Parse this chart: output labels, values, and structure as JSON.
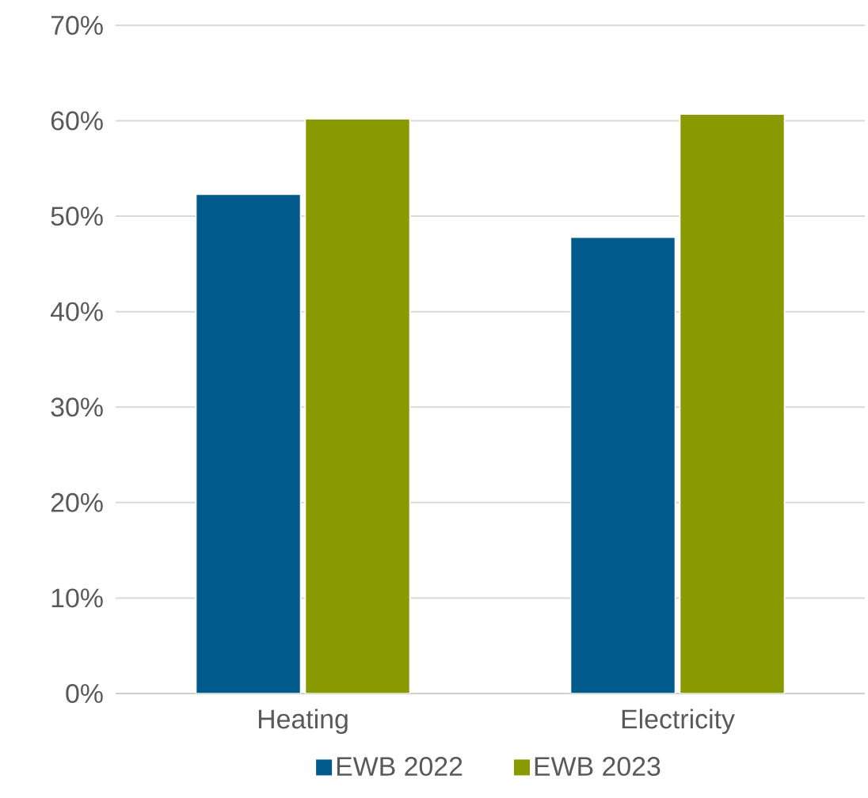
{
  "chart_data": {
    "type": "bar",
    "categories": [
      "Heating",
      "Electricity"
    ],
    "series": [
      {
        "name": "EWB 2022",
        "color": "#005a8c",
        "values": [
          52.3,
          47.8
        ]
      },
      {
        "name": "EWB 2023",
        "color": "#889a00",
        "values": [
          60.2,
          60.7
        ]
      }
    ],
    "ylim": [
      0,
      70
    ],
    "yticks": [
      {
        "value": 0,
        "label": "0%"
      },
      {
        "value": 10,
        "label": "10%"
      },
      {
        "value": 20,
        "label": "20%"
      },
      {
        "value": 30,
        "label": "30%"
      },
      {
        "value": 40,
        "label": "40%"
      },
      {
        "value": 50,
        "label": "50%"
      },
      {
        "value": 60,
        "label": "60%"
      },
      {
        "value": 70,
        "label": "70%"
      }
    ],
    "grid": "y",
    "legend": "bottom"
  }
}
